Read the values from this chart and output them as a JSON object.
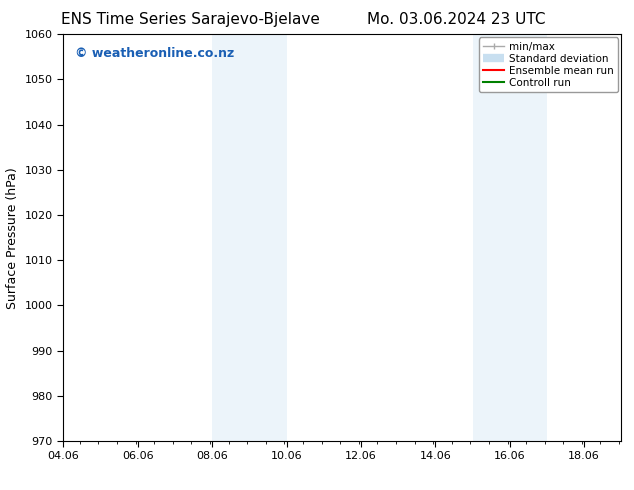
{
  "title_left": "ENS Time Series Sarajevo-Bjelave",
  "title_right": "Mo. 03.06.2024 23 UTC",
  "ylabel": "Surface Pressure (hPa)",
  "ylim": [
    970,
    1060
  ],
  "yticks": [
    970,
    980,
    990,
    1000,
    1010,
    1020,
    1030,
    1040,
    1050,
    1060
  ],
  "xlim_start": 4.06,
  "xlim_end": 19.06,
  "xtick_labels": [
    "04.06",
    "06.06",
    "08.06",
    "10.06",
    "12.06",
    "14.06",
    "16.06",
    "18.06"
  ],
  "xtick_positions": [
    4.06,
    6.06,
    8.06,
    10.06,
    12.06,
    14.06,
    16.06,
    18.06
  ],
  "shaded_bands": [
    {
      "xmin": 8.06,
      "xmax": 10.06
    },
    {
      "xmin": 15.06,
      "xmax": 17.06
    }
  ],
  "shade_color": "#daeaf7",
  "watermark": "© weatheronline.co.nz",
  "watermark_color": "#1a5fb4",
  "background_color": "#ffffff",
  "legend_items": [
    {
      "label": "min/max",
      "color": "#aaaaaa",
      "lw": 1.0
    },
    {
      "label": "Standard deviation",
      "color": "#c8dff0",
      "lw": 8
    },
    {
      "label": "Ensemble mean run",
      "color": "#ff0000",
      "lw": 1.5
    },
    {
      "label": "Controll run",
      "color": "#008000",
      "lw": 1.5
    }
  ],
  "spine_color": "#000000",
  "tick_color": "#000000",
  "font_family": "DejaVu Sans",
  "title_fontsize": 11,
  "ylabel_fontsize": 9,
  "tick_fontsize": 8,
  "watermark_fontsize": 9
}
